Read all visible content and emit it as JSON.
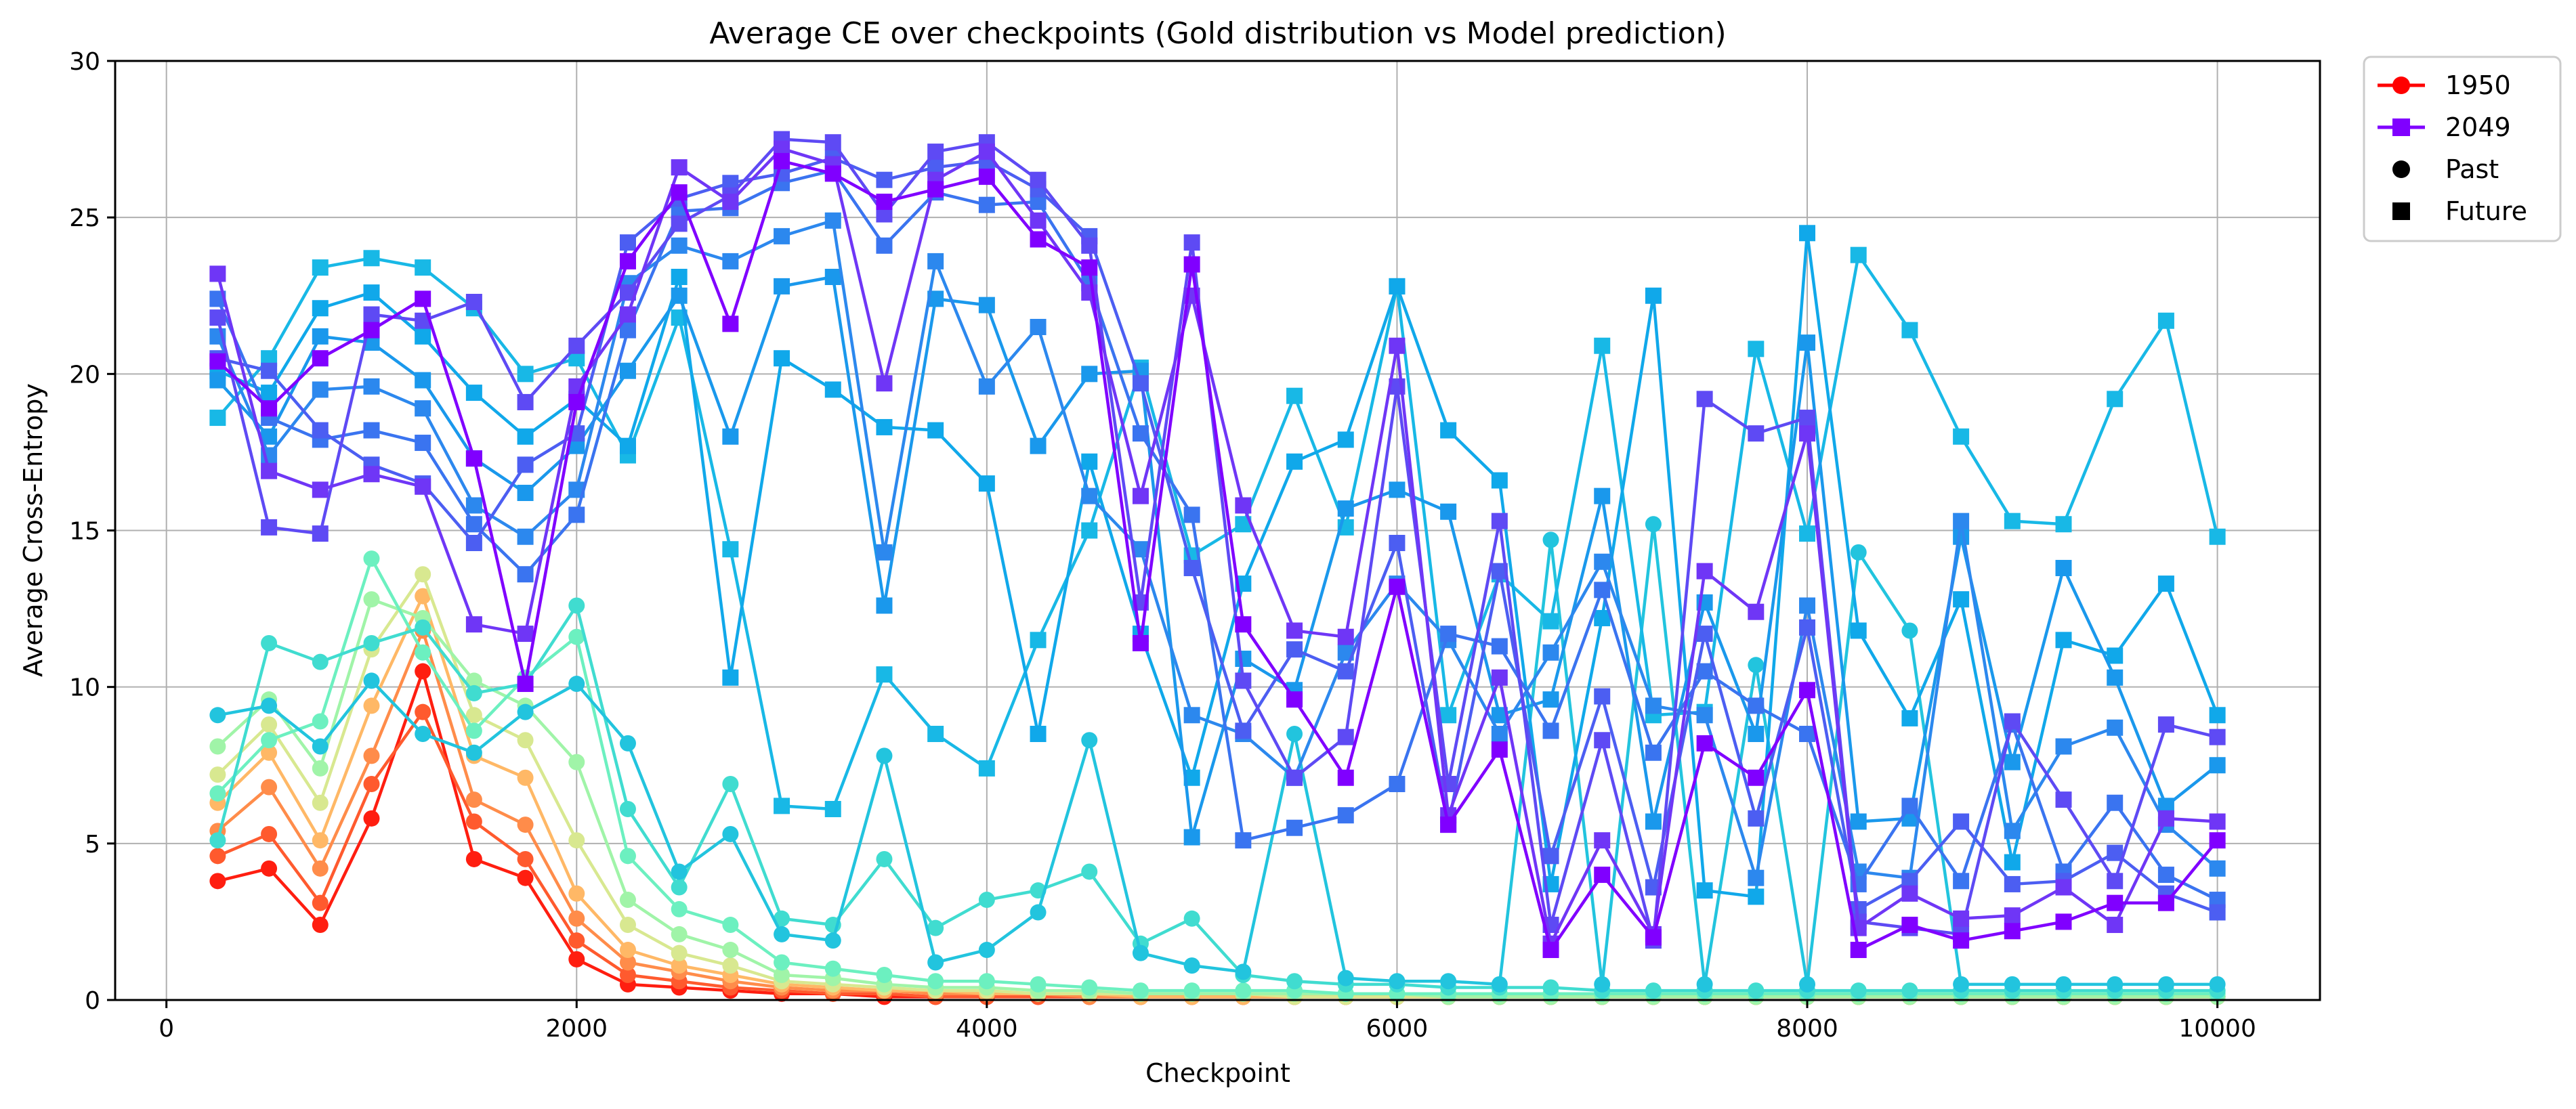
{
  "chart_data": {
    "type": "line",
    "title": "Average CE over checkpoints (Gold distribution vs Model prediction)",
    "xlabel": "Checkpoint",
    "ylabel": "Average Cross-Entropy",
    "xlim": [
      -250,
      10500
    ],
    "ylim": [
      0,
      30
    ],
    "xticks": [
      0,
      2000,
      4000,
      6000,
      8000,
      10000
    ],
    "yticks": [
      0,
      5,
      10,
      15,
      20,
      25,
      30
    ],
    "grid": true,
    "legend_position": "outside-top-right",
    "colormap": "rainbow",
    "x": [
      250,
      500,
      750,
      1000,
      1250,
      1500,
      1750,
      2000,
      2250,
      2500,
      2750,
      3000,
      3250,
      3500,
      3750,
      4000,
      4250,
      4500,
      4750,
      5000,
      5250,
      5500,
      5750,
      6000,
      6250,
      6500,
      6750,
      7000,
      7250,
      7500,
      7750,
      8000,
      8250,
      8500,
      8750,
      9000,
      9250,
      9500,
      9750,
      10000
    ],
    "legend": [
      {
        "label": "1950",
        "marker": "circle",
        "line": true,
        "color": "#ff0000"
      },
      {
        "label": "2049",
        "marker": "square",
        "line": true,
        "color": "#8000ff"
      },
      {
        "label": "Past",
        "marker": "circle",
        "line": false,
        "color": "#000000"
      },
      {
        "label": "Future",
        "marker": "square",
        "line": false,
        "color": "#000000"
      }
    ],
    "series": [
      {
        "marker": "circle",
        "color": "#ff1e10",
        "values": [
          3.8,
          4.2,
          2.4,
          5.8,
          10.5,
          4.5,
          3.9,
          1.3,
          0.5,
          0.4,
          0.3,
          0.2,
          0.2,
          0.1,
          0.1,
          0.1,
          0.1,
          0.1,
          0.1,
          0.1,
          0.1,
          0.1,
          0.1,
          0.1,
          0.1,
          0.1,
          0.1,
          0.1,
          0.1,
          0.1,
          0.1,
          0.1,
          0.1,
          0.1,
          0.1,
          0.1,
          0.1,
          0.1,
          0.1,
          0.1
        ]
      },
      {
        "marker": "circle",
        "color": "#ff5a2e",
        "values": [
          4.6,
          5.3,
          3.1,
          6.9,
          9.2,
          5.7,
          4.5,
          1.9,
          0.8,
          0.6,
          0.4,
          0.3,
          0.2,
          0.2,
          0.1,
          0.1,
          0.1,
          0.1,
          0.1,
          0.1,
          0.1,
          0.1,
          0.1,
          0.1,
          0.1,
          0.1,
          0.1,
          0.1,
          0.1,
          0.1,
          0.1,
          0.1,
          0.1,
          0.1,
          0.1,
          0.1,
          0.1,
          0.1,
          0.1,
          0.1
        ]
      },
      {
        "marker": "circle",
        "color": "#ff8c4a",
        "values": [
          5.4,
          6.8,
          4.2,
          7.8,
          11.8,
          6.4,
          5.6,
          2.6,
          1.2,
          0.9,
          0.6,
          0.4,
          0.3,
          0.3,
          0.2,
          0.2,
          0.2,
          0.1,
          0.1,
          0.1,
          0.1,
          0.1,
          0.1,
          0.1,
          0.1,
          0.1,
          0.1,
          0.1,
          0.1,
          0.1,
          0.1,
          0.1,
          0.1,
          0.1,
          0.1,
          0.1,
          0.1,
          0.1,
          0.1,
          0.1
        ]
      },
      {
        "marker": "circle",
        "color": "#ffb866",
        "values": [
          6.3,
          7.9,
          5.1,
          9.4,
          12.9,
          7.8,
          7.1,
          3.4,
          1.6,
          1.1,
          0.8,
          0.5,
          0.4,
          0.3,
          0.3,
          0.2,
          0.2,
          0.2,
          0.1,
          0.1,
          0.1,
          0.1,
          0.1,
          0.1,
          0.1,
          0.1,
          0.1,
          0.1,
          0.1,
          0.1,
          0.1,
          0.1,
          0.1,
          0.1,
          0.1,
          0.1,
          0.1,
          0.1,
          0.1,
          0.1
        ]
      },
      {
        "marker": "circle",
        "color": "#d8e890",
        "values": [
          7.2,
          8.8,
          6.3,
          11.2,
          13.6,
          9.1,
          8.3,
          5.1,
          2.4,
          1.5,
          1.1,
          0.6,
          0.5,
          0.4,
          0.3,
          0.3,
          0.2,
          0.2,
          0.2,
          0.2,
          0.2,
          0.1,
          0.1,
          0.1,
          0.1,
          0.1,
          0.1,
          0.1,
          0.1,
          0.1,
          0.1,
          0.1,
          0.1,
          0.1,
          0.1,
          0.1,
          0.1,
          0.1,
          0.1,
          0.1
        ]
      },
      {
        "marker": "circle",
        "color": "#a0f4a8",
        "values": [
          8.1,
          9.6,
          7.4,
          12.8,
          12.2,
          10.2,
          9.4,
          7.6,
          3.2,
          2.1,
          1.6,
          0.8,
          0.7,
          0.5,
          0.4,
          0.4,
          0.3,
          0.3,
          0.2,
          0.2,
          0.2,
          0.2,
          0.2,
          0.2,
          0.1,
          0.1,
          0.1,
          0.1,
          0.1,
          0.1,
          0.1,
          0.1,
          0.1,
          0.1,
          0.1,
          0.1,
          0.1,
          0.1,
          0.1,
          0.1
        ]
      },
      {
        "marker": "circle",
        "color": "#6cf0c0",
        "values": [
          6.6,
          8.3,
          8.9,
          14.1,
          11.1,
          8.6,
          10.3,
          11.6,
          4.6,
          2.9,
          2.4,
          1.2,
          1.0,
          0.8,
          0.6,
          0.6,
          0.5,
          0.4,
          0.3,
          0.3,
          0.3,
          0.3,
          0.2,
          0.2,
          0.2,
          0.2,
          0.2,
          0.2,
          0.2,
          0.2,
          0.2,
          0.2,
          0.2,
          0.2,
          0.2,
          0.2,
          0.2,
          0.2,
          0.2,
          0.2
        ]
      },
      {
        "marker": "circle",
        "color": "#40dcd0",
        "values": [
          5.1,
          11.4,
          10.8,
          11.4,
          11.9,
          9.8,
          10.1,
          12.6,
          6.1,
          3.6,
          6.9,
          2.6,
          2.4,
          4.5,
          2.3,
          3.2,
          3.5,
          4.1,
          1.8,
          2.6,
          0.8,
          0.6,
          0.5,
          0.5,
          0.4,
          0.4,
          0.4,
          0.3,
          0.3,
          0.3,
          0.3,
          0.3,
          0.3,
          0.3,
          0.3,
          0.3,
          0.3,
          0.3,
          0.3,
          0.3
        ]
      },
      {
        "marker": "circle",
        "color": "#22c4de",
        "values": [
          9.1,
          9.4,
          8.1,
          10.2,
          8.5,
          7.9,
          9.2,
          10.1,
          8.2,
          4.1,
          5.3,
          2.1,
          1.9,
          7.8,
          1.2,
          1.6,
          2.8,
          8.3,
          1.5,
          1.1,
          0.9,
          8.5,
          0.7,
          0.6,
          0.6,
          0.5,
          14.7,
          0.5,
          15.2,
          0.5,
          10.7,
          0.5,
          14.3,
          11.8,
          0.5,
          0.5,
          0.5,
          0.5,
          0.5,
          0.5
        ]
      },
      {
        "marker": "square",
        "color": "#18b8e6",
        "values": [
          18.6,
          20.5,
          23.4,
          23.7,
          23.4,
          22.1,
          20.0,
          20.5,
          17.4,
          21.8,
          14.4,
          6.2,
          6.1,
          10.4,
          8.5,
          7.4,
          11.5,
          15.0,
          20.2,
          14.2,
          15.2,
          19.3,
          15.1,
          22.8,
          9.1,
          13.6,
          12.1,
          20.9,
          9.1,
          9.2,
          20.8,
          14.9,
          23.8,
          21.4,
          18.0,
          15.3,
          15.2,
          19.2,
          21.7,
          14.8
        ]
      },
      {
        "marker": "square",
        "color": "#10a8ea",
        "values": [
          20.1,
          19.4,
          22.1,
          22.6,
          21.2,
          19.4,
          18.0,
          19.2,
          17.7,
          23.1,
          10.3,
          20.5,
          19.5,
          18.3,
          18.2,
          16.5,
          8.5,
          17.2,
          11.7,
          7.1,
          13.3,
          17.2,
          17.9,
          22.8,
          18.2,
          16.6,
          3.7,
          12.2,
          22.5,
          3.5,
          3.3,
          24.5,
          11.8,
          9.0,
          12.8,
          4.4,
          11.5,
          11.0,
          13.3,
          9.1
        ]
      },
      {
        "marker": "square",
        "color": "#1a98ec",
        "values": [
          19.8,
          18.0,
          21.2,
          21.0,
          19.8,
          17.3,
          16.2,
          17.7,
          20.1,
          22.5,
          18.0,
          22.8,
          23.1,
          12.6,
          22.4,
          22.2,
          17.7,
          20.0,
          20.1,
          5.2,
          10.9,
          9.9,
          15.7,
          16.3,
          15.6,
          9.1,
          9.6,
          16.1,
          5.7,
          12.7,
          8.5,
          21.0,
          5.7,
          5.8,
          14.8,
          7.6,
          13.8,
          10.3,
          6.2,
          7.5
        ]
      },
      {
        "marker": "square",
        "color": "#2c88ee",
        "values": [
          21.2,
          17.4,
          19.5,
          19.6,
          18.9,
          15.8,
          14.8,
          16.3,
          22.9,
          24.1,
          23.6,
          24.4,
          24.9,
          14.3,
          23.6,
          19.6,
          21.5,
          16.1,
          14.4,
          9.1,
          8.5,
          7.1,
          11.1,
          13.3,
          11.5,
          8.5,
          11.1,
          14.0,
          9.4,
          9.1,
          3.9,
          12.6,
          4.1,
          3.9,
          15.3,
          5.4,
          8.1,
          8.7,
          5.6,
          4.2
        ]
      },
      {
        "marker": "square",
        "color": "#3a74f0",
        "values": [
          22.4,
          18.6,
          17.9,
          18.2,
          17.8,
          15.2,
          13.6,
          15.5,
          21.4,
          25.2,
          25.3,
          26.1,
          26.5,
          24.1,
          25.8,
          25.4,
          25.5,
          22.9,
          18.1,
          15.5,
          5.1,
          5.5,
          5.9,
          6.9,
          11.7,
          11.3,
          8.6,
          13.1,
          7.9,
          10.5,
          9.4,
          8.5,
          3.7,
          6.2,
          3.8,
          8.8,
          4.1,
          6.3,
          4.0,
          3.2
        ]
      },
      {
        "marker": "square",
        "color": "#4c5ef2",
        "values": [
          20.5,
          20.1,
          18.2,
          17.1,
          16.5,
          14.6,
          17.1,
          18.1,
          24.2,
          25.6,
          26.1,
          26.4,
          26.9,
          26.2,
          26.6,
          26.8,
          25.9,
          24.4,
          19.7,
          13.8,
          8.6,
          11.2,
          10.5,
          14.6,
          5.6,
          13.7,
          4.6,
          9.7,
          3.6,
          11.7,
          5.8,
          11.9,
          2.9,
          3.8,
          5.7,
          3.7,
          3.8,
          4.7,
          3.4,
          2.8
        ]
      },
      {
        "marker": "square",
        "color": "#5e4af4",
        "values": [
          21.8,
          15.1,
          14.9,
          21.9,
          21.7,
          22.3,
          19.1,
          20.9,
          22.6,
          24.8,
          25.7,
          27.5,
          27.4,
          25.1,
          27.1,
          27.4,
          26.2,
          24.1,
          12.7,
          24.2,
          10.2,
          7.1,
          8.4,
          19.6,
          6.9,
          15.3,
          2.4,
          8.3,
          1.9,
          19.2,
          18.1,
          18.6,
          2.5,
          2.3,
          2.1,
          8.9,
          6.4,
          3.8,
          8.8,
          8.4
        ]
      },
      {
        "marker": "square",
        "color": "#6f36f6",
        "values": [
          23.2,
          16.9,
          16.3,
          16.8,
          16.4,
          12.0,
          11.7,
          19.6,
          21.9,
          26.6,
          25.5,
          27.2,
          26.7,
          19.7,
          26.2,
          27.1,
          24.9,
          22.6,
          16.1,
          22.5,
          15.8,
          11.8,
          11.6,
          20.9,
          5.9,
          10.3,
          1.8,
          5.1,
          2.1,
          13.7,
          12.4,
          18.1,
          2.3,
          3.4,
          2.6,
          2.7,
          3.6,
          2.4,
          5.8,
          5.7
        ]
      },
      {
        "marker": "square",
        "color": "#8000ff",
        "values": [
          20.4,
          18.9,
          20.5,
          21.4,
          22.4,
          17.3,
          10.1,
          19.1,
          23.6,
          25.8,
          21.6,
          26.8,
          26.4,
          25.5,
          25.9,
          26.3,
          24.3,
          23.4,
          11.4,
          23.5,
          12.0,
          9.6,
          7.1,
          13.2,
          5.6,
          8.0,
          1.6,
          4.0,
          2.0,
          8.2,
          7.1,
          9.9,
          1.6,
          2.4,
          1.9,
          2.2,
          2.5,
          3.1,
          3.1,
          5.1
        ]
      }
    ]
  }
}
